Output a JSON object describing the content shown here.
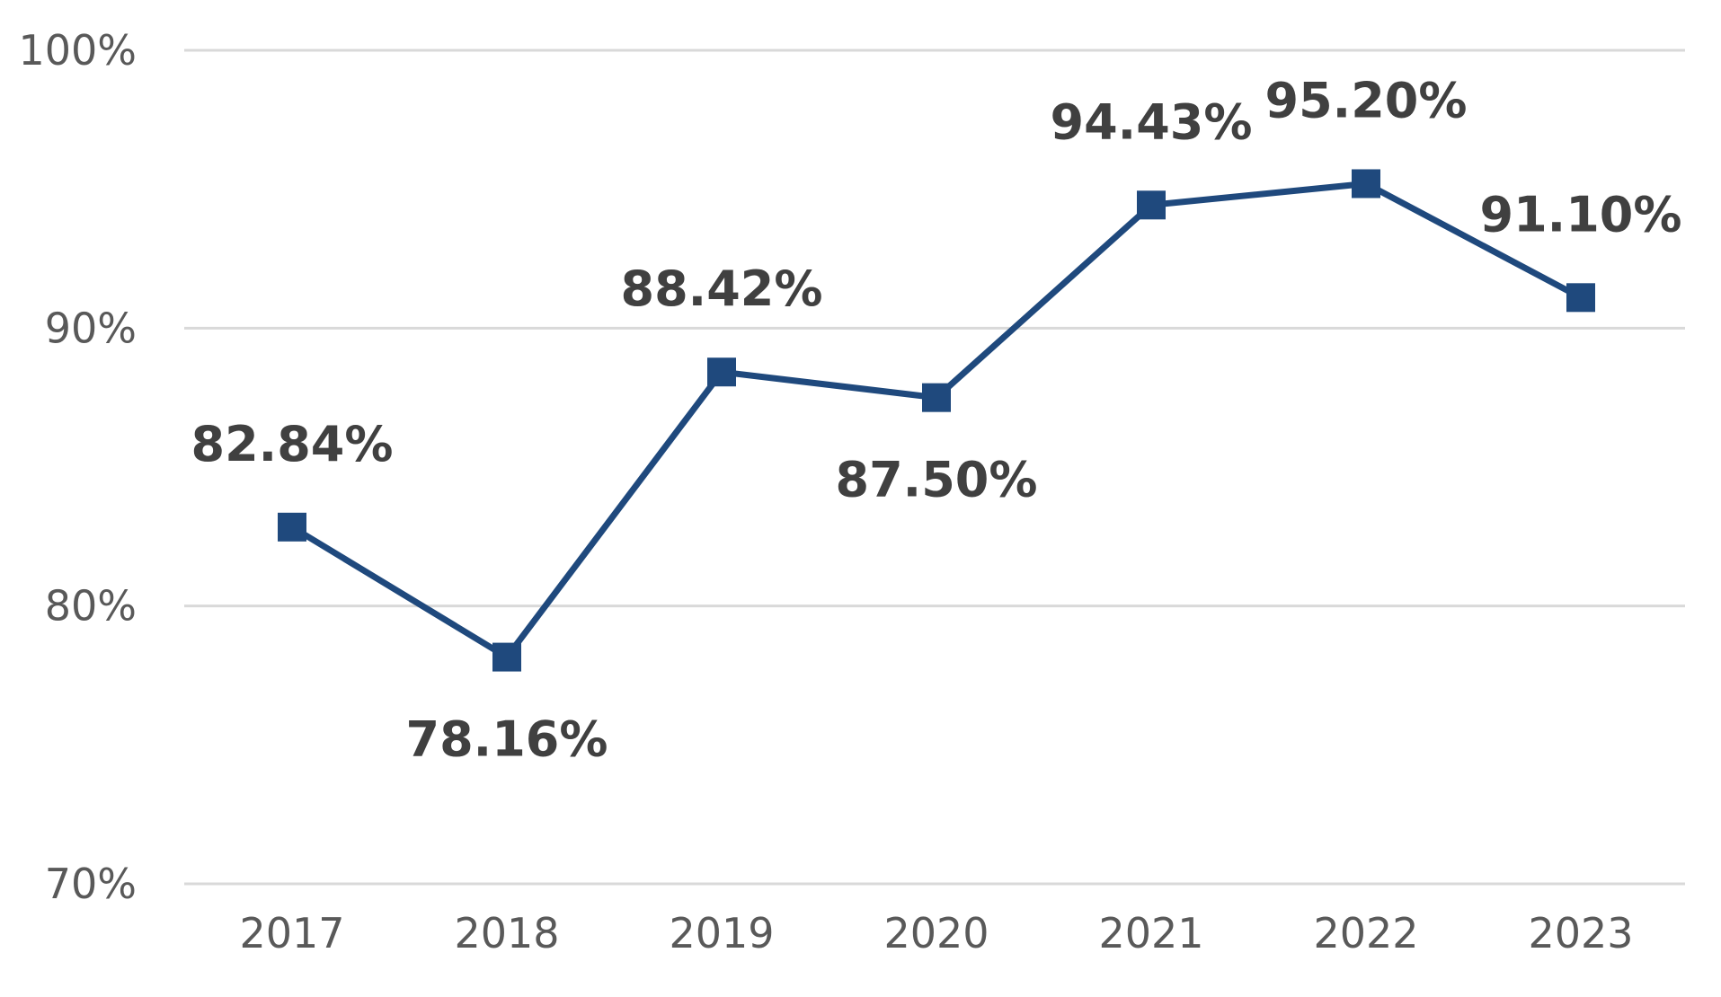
{
  "chart_data": {
    "type": "line",
    "title": "",
    "xlabel": "",
    "ylabel": "",
    "categories": [
      "2017",
      "2018",
      "2019",
      "2020",
      "2021",
      "2022",
      "2023"
    ],
    "series": [
      {
        "values": [
          82.84,
          78.16,
          88.42,
          87.5,
          94.43,
          95.2,
          91.1
        ],
        "data_labels": [
          "82.84%",
          "78.16%",
          "88.42%",
          "87.50%",
          "94.43%",
          "95.20%",
          "91.10%"
        ],
        "label_positions": [
          "above",
          "below",
          "above",
          "below",
          "above",
          "above",
          "above"
        ],
        "color": "#1f497d",
        "marker": "square"
      }
    ],
    "ylim": [
      70,
      100
    ],
    "yticks": [
      70,
      80,
      90,
      100
    ],
    "ytick_labels": [
      "70%",
      "80%",
      "90%",
      "100%"
    ],
    "grid": true,
    "legend": "none"
  }
}
